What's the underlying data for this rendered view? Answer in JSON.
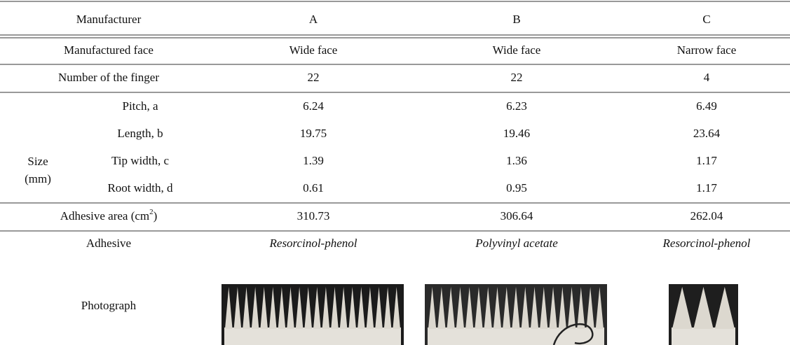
{
  "header": {
    "label": "Manufacturer",
    "columns": [
      "A",
      "B",
      "C"
    ]
  },
  "rows": [
    {
      "label": "Manufactured face",
      "values": [
        "Wide face",
        "Wide face",
        "Narrow face"
      ]
    },
    {
      "label": "Number of the finger",
      "values": [
        "22",
        "22",
        "4"
      ]
    }
  ],
  "size": {
    "label": "Size",
    "unit": "(mm)",
    "rows": [
      {
        "label": "Pitch, a",
        "values": [
          "6.24",
          "6.23",
          "6.49"
        ]
      },
      {
        "label": "Length, b",
        "values": [
          "19.75",
          "19.46",
          "23.64"
        ]
      },
      {
        "label": "Tip width, c",
        "values": [
          "1.39",
          "1.36",
          "1.17"
        ]
      },
      {
        "label": "Root width, d",
        "values": [
          "0.61",
          "0.95",
          "1.17"
        ]
      }
    ]
  },
  "adhesive_area": {
    "label": "Adhesive area (cm",
    "superscript": "2",
    "label_end": ")",
    "values": [
      "310.73",
      "306.64",
      "262.04"
    ]
  },
  "adhesive": {
    "label": "Adhesive",
    "values": [
      "Resorcinol-phenol",
      "Polyvinyl acetate",
      "Resorcinol-phenol"
    ]
  },
  "photograph": {
    "label": "Photograph"
  }
}
